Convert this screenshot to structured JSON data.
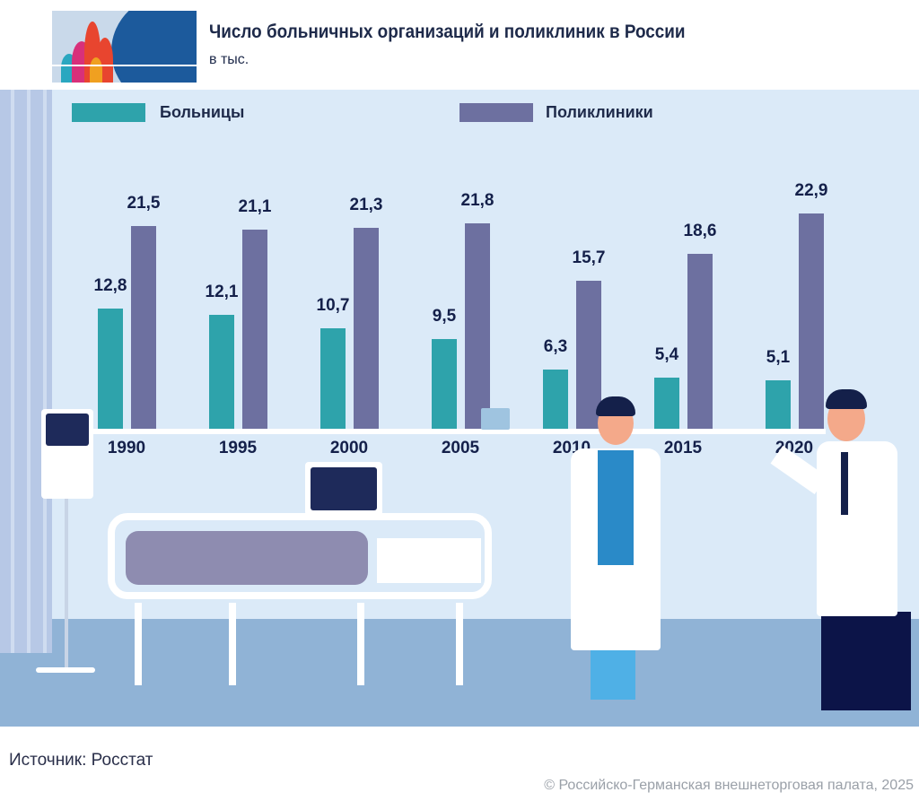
{
  "header": {
    "title": "Число больничных организаций и поликлиник в России",
    "subtitle": "в тыс."
  },
  "chart_data": {
    "type": "bar",
    "title": "Число больничных организаций и поликлиник в России",
    "subtitle": "в тыс.",
    "categories": [
      "1990",
      "1995",
      "2000",
      "2005",
      "2010",
      "2015",
      "2020"
    ],
    "series": [
      {
        "name": "Больницы",
        "color": "#2ea3ab",
        "values": [
          12.8,
          12.1,
          10.7,
          9.5,
          6.3,
          5.4,
          5.1
        ],
        "labels": [
          "12,8",
          "12,1",
          "10,7",
          "9,5",
          "6,3",
          "5,4",
          "5,1"
        ]
      },
      {
        "name": "Поликлиники",
        "color": "#6d70a0",
        "values": [
          21.5,
          21.1,
          21.3,
          21.8,
          15.7,
          18.6,
          22.9
        ],
        "labels": [
          "21,5",
          "21,1",
          "21,3",
          "21,8",
          "15,7",
          "18,6",
          "22,9"
        ]
      }
    ],
    "legend_position": "top",
    "grid": false
  },
  "footer": {
    "source": "Источник: Росстат",
    "copyright": "© Российско-Германская внешнеторговая палата, 2025"
  }
}
